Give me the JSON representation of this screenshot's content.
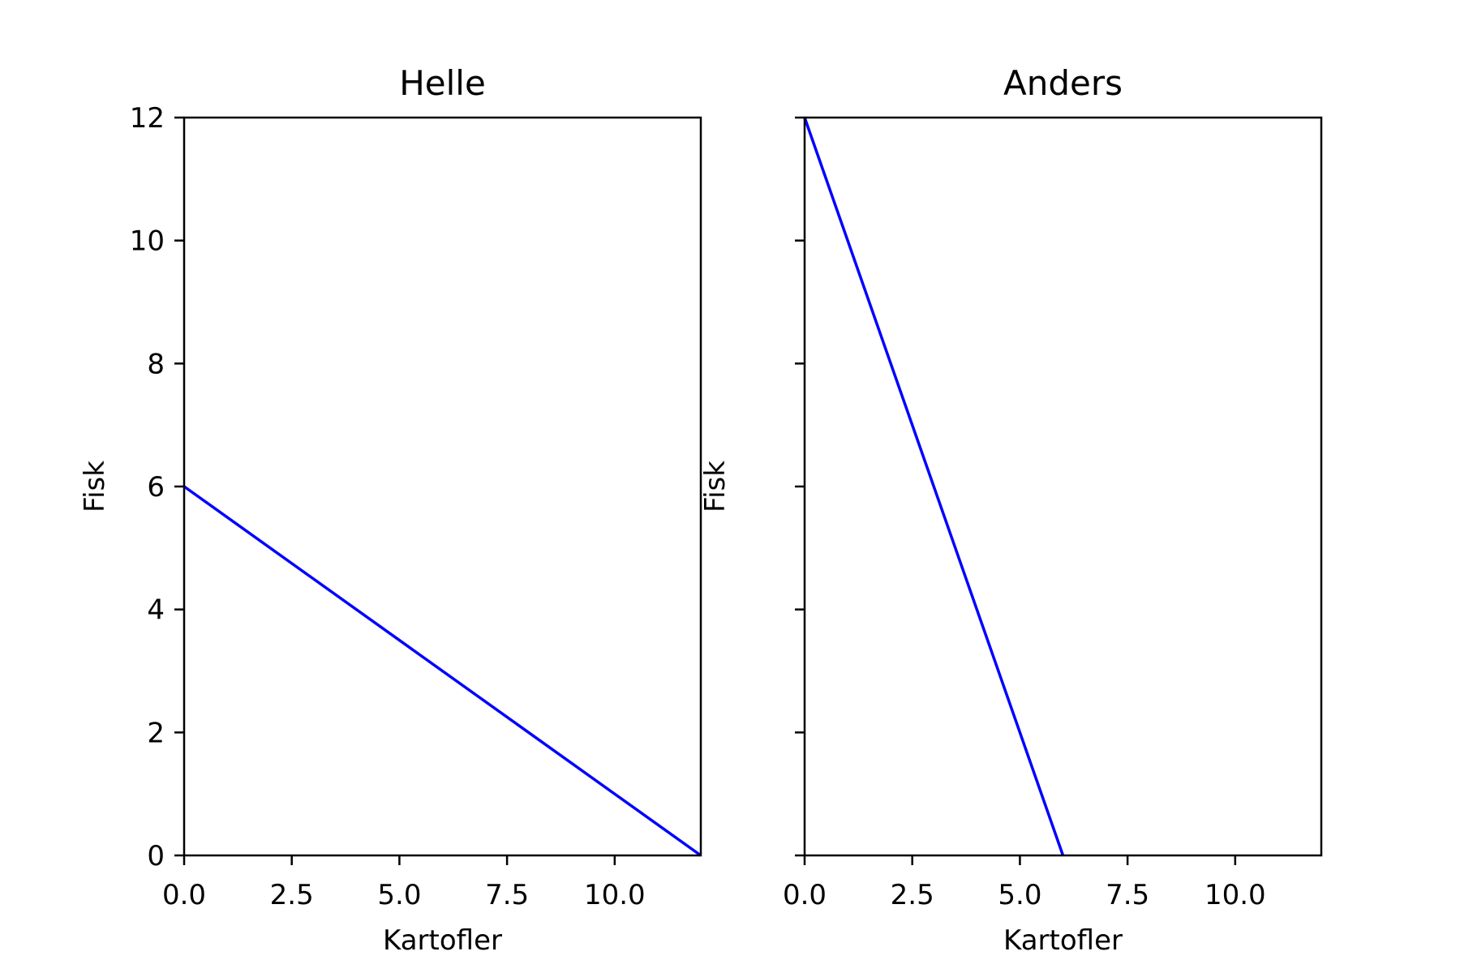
{
  "chart_data": [
    {
      "type": "line",
      "title": "Helle",
      "xlabel": "Kartofler",
      "ylabel": "Fisk",
      "xlim": [
        0,
        12
      ],
      "ylim": [
        0,
        12
      ],
      "xticks": [
        0.0,
        2.5,
        5.0,
        7.5,
        10.0
      ],
      "xtick_labels": [
        "0.0",
        "2.5",
        "5.0",
        "7.5",
        "10.0"
      ],
      "yticks": [
        0,
        2,
        4,
        6,
        8,
        10,
        12
      ],
      "ytick_labels": [
        "0",
        "2",
        "4",
        "6",
        "8",
        "10",
        "12"
      ],
      "show_ytick_labels": true,
      "grid": false,
      "series": [
        {
          "x": [
            0,
            12
          ],
          "y": [
            6,
            0
          ],
          "color": "#0000ff"
        }
      ]
    },
    {
      "type": "line",
      "title": "Anders",
      "xlabel": "Kartofler",
      "ylabel": "Fisk",
      "xlim": [
        0,
        12
      ],
      "ylim": [
        0,
        12
      ],
      "xticks": [
        0.0,
        2.5,
        5.0,
        7.5,
        10.0
      ],
      "xtick_labels": [
        "0.0",
        "2.5",
        "5.0",
        "7.5",
        "10.0"
      ],
      "yticks": [
        0,
        2,
        4,
        6,
        8,
        10,
        12
      ],
      "ytick_labels": [],
      "show_ytick_labels": false,
      "grid": false,
      "series": [
        {
          "x": [
            0,
            6
          ],
          "y": [
            12,
            0
          ],
          "color": "#0000ff"
        }
      ]
    }
  ]
}
